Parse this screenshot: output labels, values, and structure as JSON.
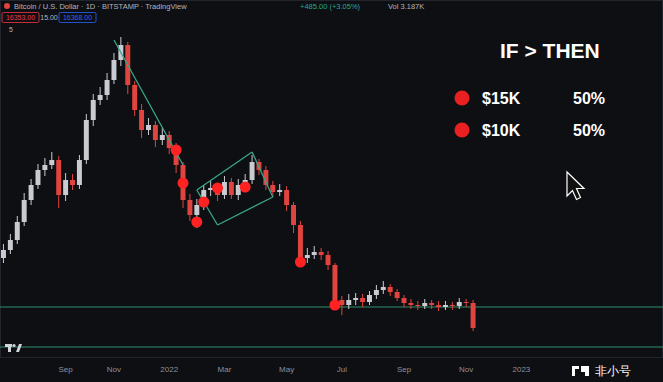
{
  "chart_data": {
    "type": "candlestick",
    "title": "Bitcoin / U.S. Dollar · 1D · BITSTAMP · TradingView",
    "header": {
      "change": "+485.00 (+3.05%)",
      "volume": "Vol 3.187K",
      "sell": "16353.00",
      "spread": "15.00",
      "buy": "16368.00",
      "indicator": "5"
    },
    "categories": [
      null,
      null,
      null,
      null,
      null,
      null,
      null,
      null,
      null,
      "Sep",
      null,
      null,
      null,
      null,
      null,
      null,
      "Nov",
      null,
      null,
      null,
      null,
      null,
      null,
      null,
      "2022",
      null,
      null,
      null,
      null,
      null,
      null,
      null,
      "Mar",
      null,
      null,
      null,
      null,
      null,
      null,
      null,
      null,
      "May",
      null,
      null,
      null,
      null,
      null,
      null,
      null,
      "Jul",
      null,
      null,
      null,
      null,
      null,
      null,
      null,
      null,
      "Sep",
      null,
      null,
      null,
      null,
      null,
      null,
      null,
      null,
      "Nov",
      null,
      null,
      null,
      null,
      null,
      null,
      null,
      "2023",
      null,
      null,
      null,
      null,
      null,
      null,
      null,
      null,
      null,
      null,
      null,
      null,
      null,
      null,
      null,
      null,
      null,
      null,
      null,
      null
    ],
    "open": [
      25000,
      26600,
      28600,
      32200,
      36600,
      39600,
      42600,
      43600,
      44600,
      37600,
      40600,
      39600,
      44600,
      52600,
      56600,
      57600,
      60600,
      64600,
      67600,
      59600,
      54600,
      50600,
      51600,
      48600,
      49600,
      47000,
      43600,
      36600,
      33600,
      35600,
      38600,
      39000,
      37600,
      40200,
      37600,
      39600,
      40600,
      44200,
      42600,
      39600,
      38200,
      38600,
      35600,
      31600,
      25000,
      25600,
      26200,
      25600,
      23600,
      16600,
      15600,
      16600,
      17000,
      16200,
      17600,
      18600,
      19200,
      18200,
      17000,
      16000,
      15600,
      15400,
      16000,
      15600,
      15200,
      15600,
      15400,
      16200,
      16000,
      null,
      null,
      null,
      null,
      null,
      null,
      null,
      null,
      null,
      null,
      null,
      null,
      null,
      null,
      null,
      null,
      null,
      null,
      null,
      null,
      null,
      null,
      null,
      null,
      null,
      null,
      null,
      null
    ],
    "high": [
      27800,
      29800,
      33400,
      38000,
      40800,
      43800,
      45000,
      46200,
      45400,
      42000,
      41800,
      45600,
      53800,
      57800,
      59200,
      62000,
      66000,
      69200,
      68200,
      60400,
      55800,
      53000,
      52400,
      51000,
      50400,
      48000,
      44200,
      37800,
      36800,
      39600,
      40400,
      40000,
      41400,
      41000,
      40800,
      41800,
      45600,
      44800,
      43400,
      40400,
      39800,
      39400,
      36200,
      32400,
      27000,
      27400,
      27000,
      26400,
      24000,
      17400,
      17800,
      18000,
      17800,
      18400,
      19600,
      20400,
      19800,
      18800,
      17600,
      16800,
      16400,
      16800,
      16600,
      16400,
      16400,
      16200,
      17000,
      16800,
      16600,
      null,
      null,
      null,
      null,
      null,
      null,
      null,
      null,
      null,
      null,
      null,
      null,
      null,
      null,
      null,
      null,
      null,
      null,
      null,
      null,
      null,
      null,
      null,
      null,
      null,
      null,
      null,
      null
    ],
    "low": [
      24000,
      25800,
      27800,
      31400,
      35600,
      38800,
      41400,
      42800,
      35000,
      36400,
      38600,
      38800,
      43800,
      51400,
      55600,
      56600,
      59800,
      63400,
      57800,
      53400,
      49000,
      49600,
      47200,
      47600,
      45800,
      42000,
      35000,
      32400,
      31000,
      34600,
      37400,
      36400,
      36800,
      36800,
      36600,
      38600,
      39800,
      41600,
      38600,
      37200,
      37400,
      34400,
      30000,
      23800,
      24000,
      24800,
      24600,
      22600,
      15400,
      13600,
      14800,
      15600,
      15200,
      15600,
      16800,
      17800,
      17400,
      16400,
      15200,
      14800,
      14600,
      14800,
      14800,
      14400,
      14600,
      14600,
      14800,
      15200,
      10400,
      null,
      null,
      null,
      null,
      null,
      null,
      null,
      null,
      null,
      null,
      null,
      null,
      null,
      null,
      null,
      null,
      null,
      null,
      null,
      null,
      null,
      null,
      null,
      null,
      null,
      null,
      null,
      null
    ],
    "close": [
      26600,
      28600,
      32200,
      36600,
      39600,
      42600,
      43600,
      44600,
      37600,
      40600,
      39600,
      44600,
      52600,
      56600,
      57600,
      60600,
      64600,
      67600,
      59600,
      54600,
      50600,
      51600,
      48600,
      49600,
      47000,
      43600,
      36600,
      33600,
      35600,
      38600,
      39000,
      37600,
      40200,
      37600,
      39600,
      40600,
      44200,
      42600,
      39600,
      38200,
      38600,
      35600,
      31600,
      25000,
      25600,
      26200,
      25600,
      23600,
      16600,
      15600,
      16600,
      17000,
      16200,
      17600,
      18600,
      19200,
      18200,
      17000,
      16000,
      15600,
      15400,
      16000,
      15600,
      15200,
      15600,
      15400,
      16200,
      16000,
      11000,
      null,
      null,
      null,
      null,
      null,
      null,
      null,
      null,
      null,
      null,
      null,
      null,
      null,
      null,
      null,
      null,
      null,
      null,
      null,
      null,
      null,
      null,
      null,
      null,
      null,
      null,
      null,
      null
    ],
    "ylim": [
      5000,
      76600
    ],
    "tick_labels": "x",
    "grid": false,
    "hlines": [
      15200,
      7200
    ],
    "trendlines": [
      {
        "from": [
          16,
          68600
        ],
        "to": [
          26,
          43600
        ]
      },
      {
        "from": [
          28,
          38600
        ],
        "to": [
          36,
          46200
        ]
      },
      {
        "from": [
          31,
          31600
        ],
        "to": [
          39,
          37200
        ]
      },
      {
        "from": [
          28,
          38600
        ],
        "to": [
          31,
          31600
        ]
      },
      {
        "from": [
          36,
          46200
        ],
        "to": [
          39,
          37200
        ]
      }
    ],
    "dots": [
      {
        "index": 25,
        "value": 46600
      },
      {
        "index": 26,
        "value": 40000
      },
      {
        "index": 28,
        "value": 32200
      },
      {
        "index": 29,
        "value": 36200
      },
      {
        "index": 31,
        "value": 39000
      },
      {
        "index": 35,
        "value": 39200
      },
      {
        "index": 43,
        "value": 24200
      },
      {
        "index": 48,
        "value": 15600
      }
    ],
    "scenarios": {
      "title": "IF > THEN",
      "labels": [
        "$15K",
        "$10K"
      ],
      "values": [
        50,
        50
      ],
      "value_labels": [
        "50%",
        "50%"
      ]
    },
    "watermark": "非小号"
  }
}
